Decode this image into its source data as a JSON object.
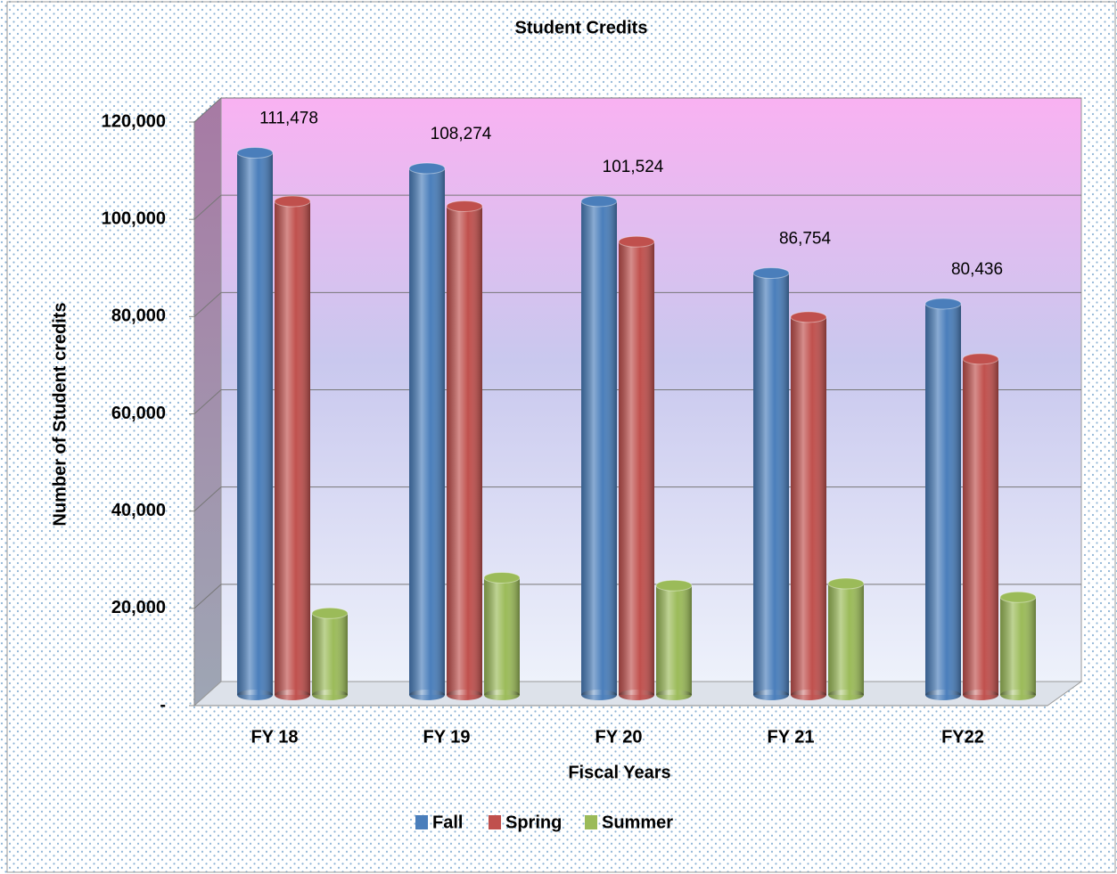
{
  "chart_data": {
    "type": "bar",
    "title": "Student Credits",
    "x_label": "Fiscal Years",
    "y_label": "Number of Student credits",
    "categories": [
      "FY 18",
      "FY 19",
      "FY 20",
      "FY 21",
      "FY22"
    ],
    "series": [
      {
        "name": "Fall",
        "color": "#4a7ebb",
        "values": [
          111478,
          108274,
          101524,
          86754,
          80436
        ],
        "value_labels": [
          "111,478",
          "108,274",
          "101,524",
          "86,754",
          "80,436"
        ]
      },
      {
        "name": "Spring",
        "color": "#c0504d",
        "values": [
          101500,
          100500,
          93200,
          77700,
          69100
        ]
      },
      {
        "name": "Summer",
        "color": "#9bbb59",
        "values": [
          16800,
          24100,
          22500,
          22900,
          20100
        ]
      }
    ],
    "ylim": [
      0,
      120000
    ],
    "yticks": [
      {
        "value": 0,
        "label": "-"
      },
      {
        "value": 20000,
        "label": "20,000"
      },
      {
        "value": 40000,
        "label": "40,000"
      },
      {
        "value": 60000,
        "label": "60,000"
      },
      {
        "value": 80000,
        "label": "80,000"
      },
      {
        "value": 100000,
        "label": "100,000"
      },
      {
        "value": 120000,
        "label": "120,000"
      }
    ],
    "grid": true,
    "legend": "bottom"
  }
}
